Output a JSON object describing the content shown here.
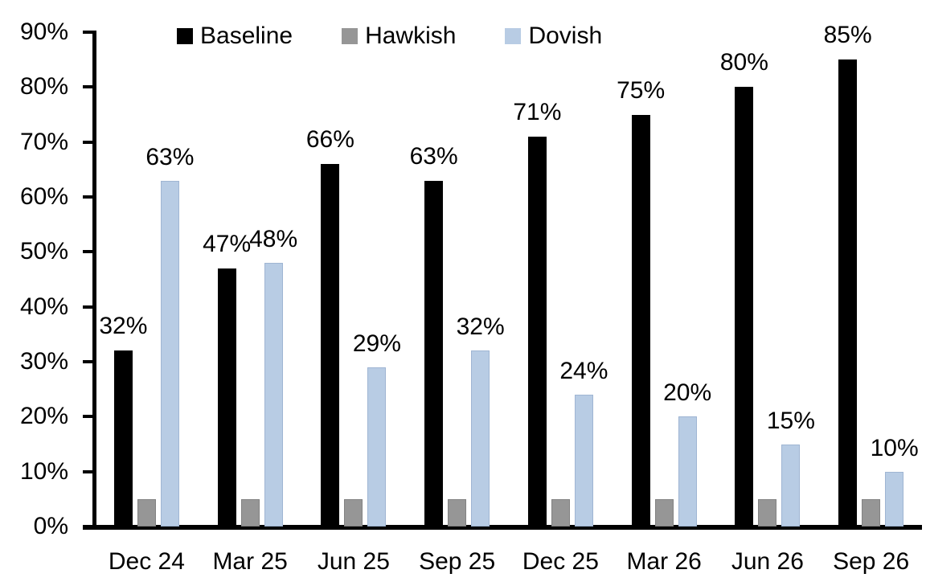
{
  "chart_data": {
    "type": "bar",
    "title": "",
    "xlabel": "",
    "ylabel": "",
    "categories": [
      "Dec 24",
      "Mar 25",
      "Jun 25",
      "Sep 25",
      "Dec 25",
      "Mar 26",
      "Jun 26",
      "Sep 26"
    ],
    "series": [
      {
        "name": "Baseline",
        "color": "#000000",
        "border": "",
        "values": [
          32,
          47,
          66,
          63,
          71,
          75,
          80,
          85
        ],
        "show_labels": true
      },
      {
        "name": "Hawkish",
        "color": "#969696",
        "border": "#828282",
        "values": [
          5,
          5,
          5,
          5,
          5,
          5,
          5,
          5
        ],
        "show_labels": false
      },
      {
        "name": "Dovish",
        "color": "#B8CCE4",
        "border": "#9FB5D3",
        "values": [
          63,
          48,
          29,
          32,
          24,
          20,
          15,
          10
        ],
        "show_labels": true
      }
    ],
    "ylim": [
      0,
      90
    ],
    "ytick_step": 10,
    "value_suffix": "%",
    "legend_position": "top",
    "grid": false
  }
}
